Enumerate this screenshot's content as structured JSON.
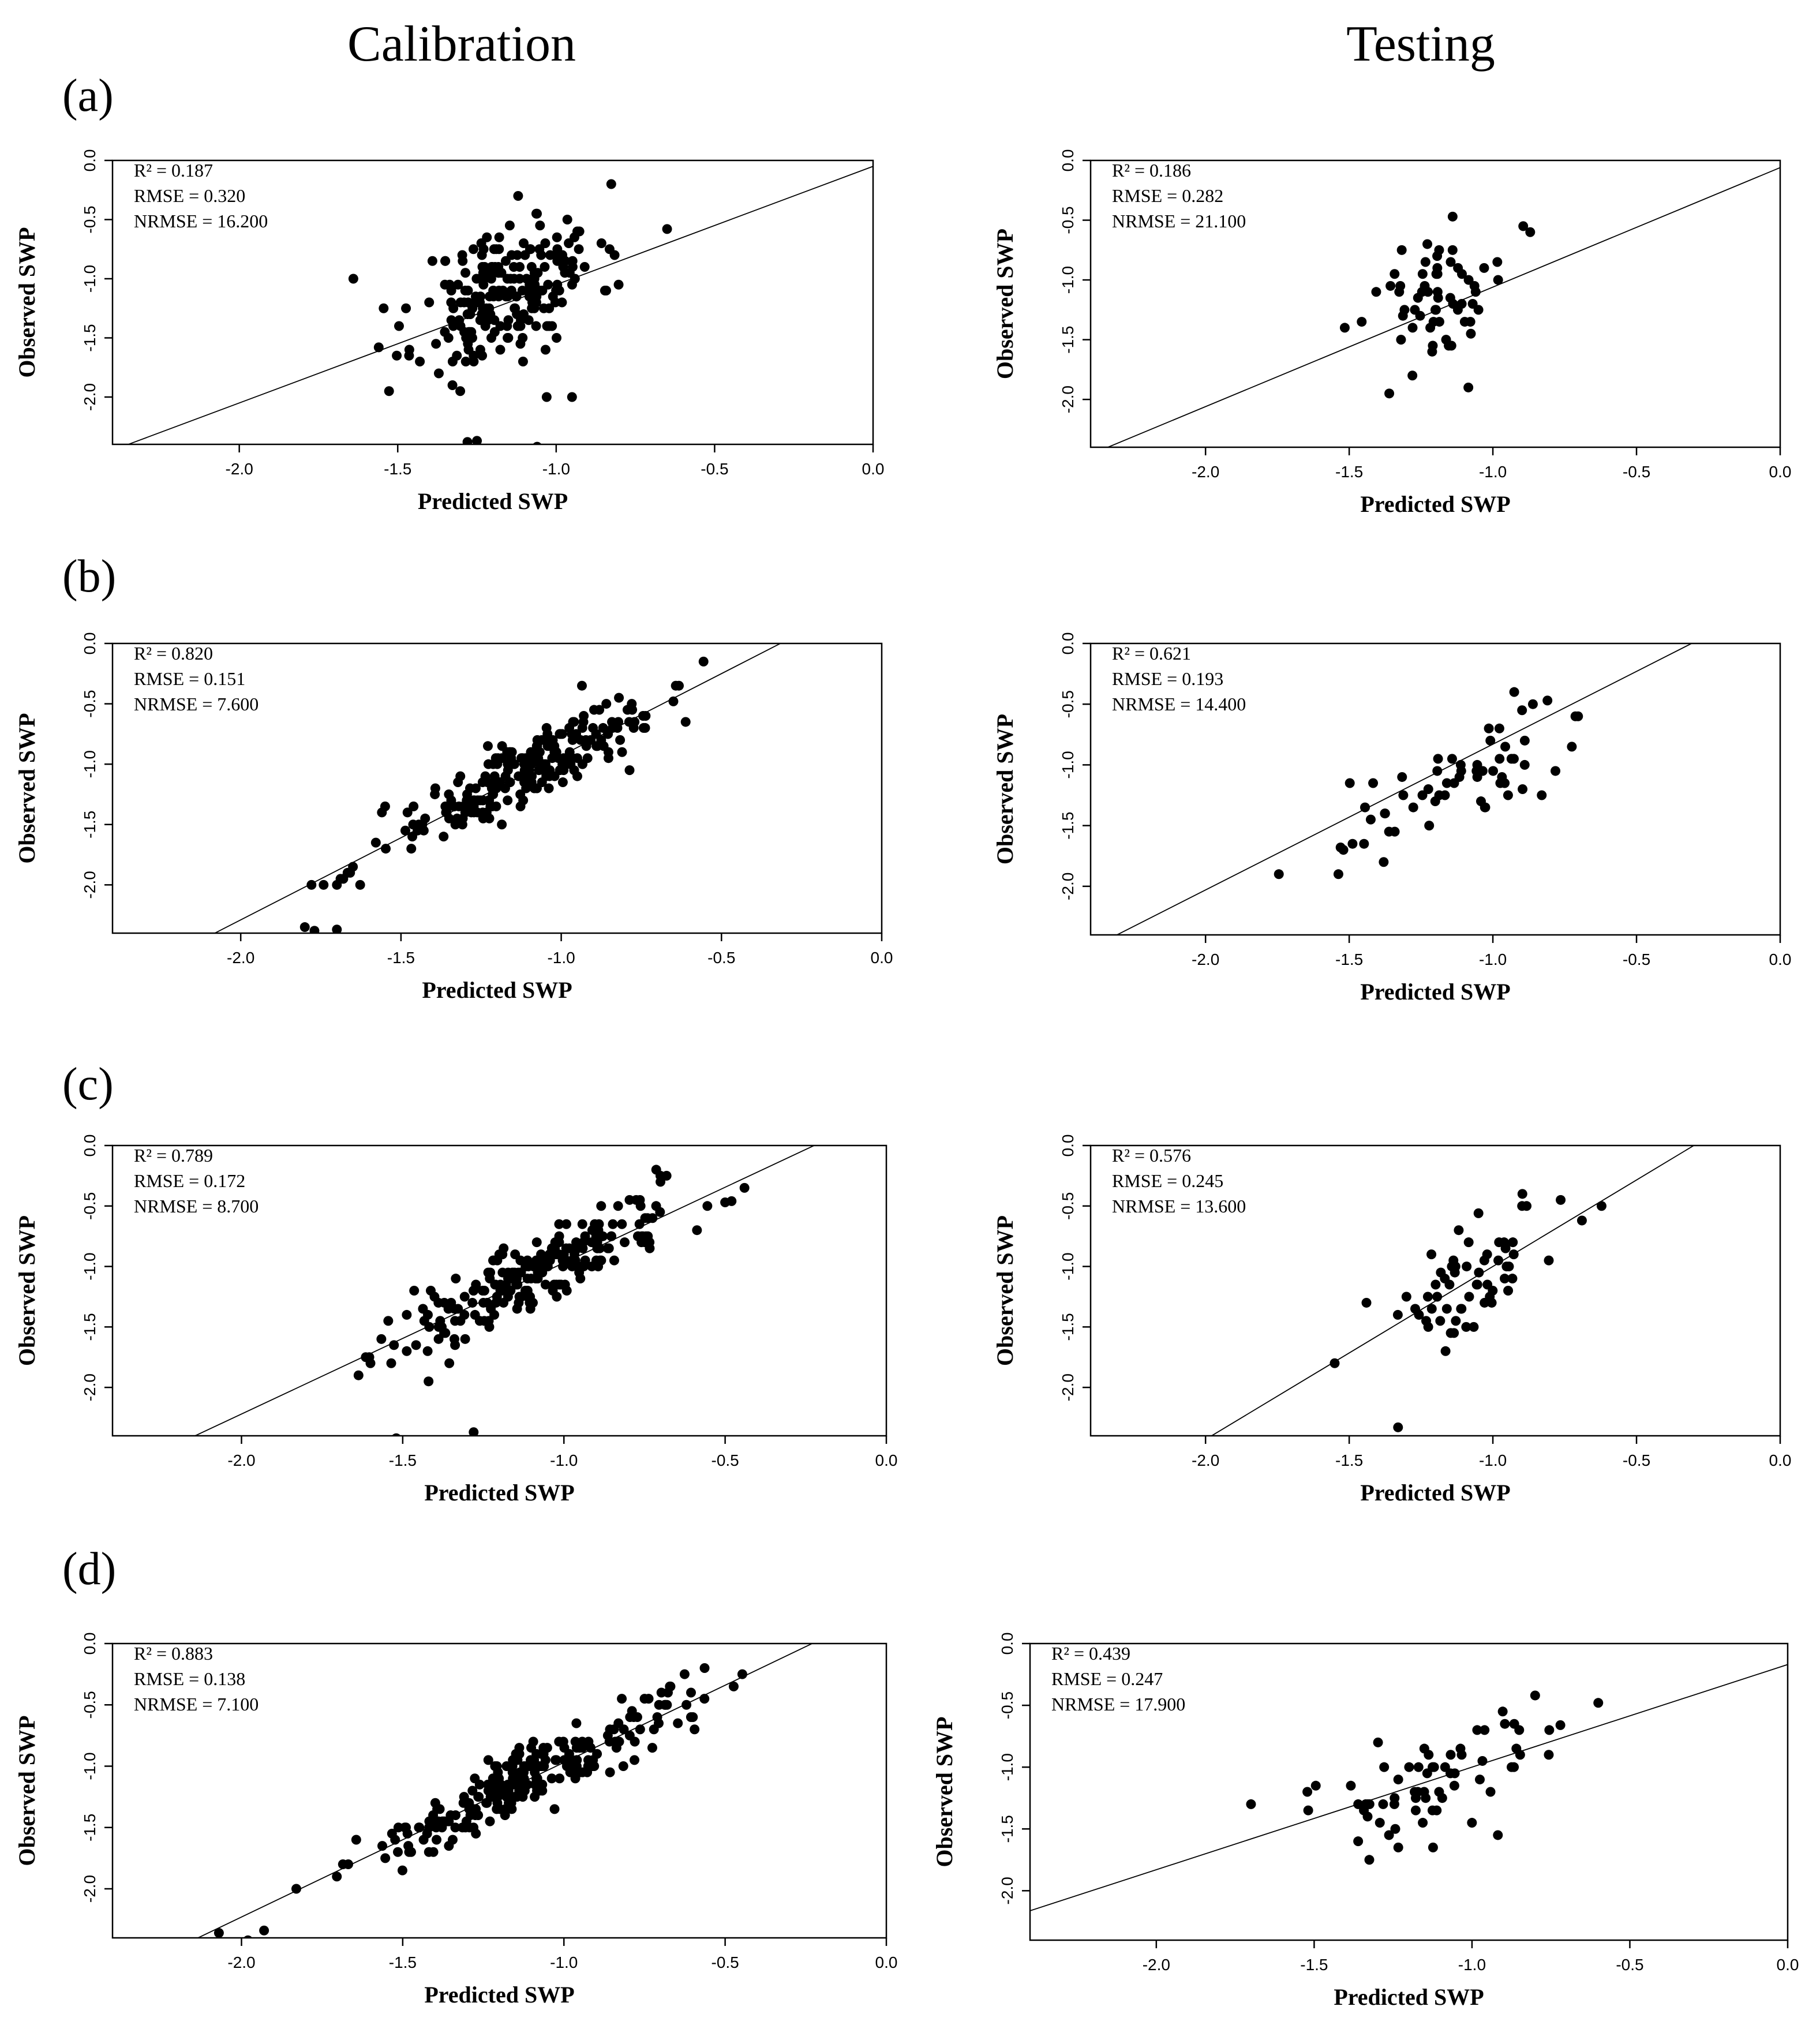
{
  "figure": {
    "col_titles": [
      "Calibration",
      "Testing"
    ],
    "panel_labels": [
      "(a)",
      "(b)",
      "(c)",
      "(d)"
    ]
  },
  "chart_data": [
    {
      "id": "a-cal",
      "type": "scatter",
      "panel": "(a)",
      "column": "Calibration",
      "xlabel": "Predicted SWP",
      "ylabel": "Observed SWP",
      "xlim": [
        -2.4,
        0.0
      ],
      "ylim": [
        -2.4,
        0.0
      ],
      "xticks": [
        "-2.0",
        "-1.5",
        "-1.0",
        "-0.5",
        "0.0"
      ],
      "yticks": [
        "0.0",
        "-0.5",
        "-1.0",
        "-1.5",
        "-2.0"
      ],
      "stats": [
        "R² = 0.187",
        "RMSE = 0.320",
        "NRMSE = 16.200"
      ],
      "fit": {
        "slope": 1.0,
        "intercept": -0.05
      },
      "seed": 11,
      "n": 220,
      "center": [
        -1.15,
        -1.1
      ],
      "sd": [
        0.14,
        0.32
      ],
      "r": 0.43,
      "extra": [
        [
          -1.64,
          -1.0
        ],
        [
          -1.56,
          -1.58
        ],
        [
          -0.65,
          -0.58
        ],
        [
          -1.28,
          -2.38
        ],
        [
          -1.25,
          -2.37
        ],
        [
          -1.06,
          -2.42
        ],
        [
          -0.95,
          -2.0
        ],
        [
          -1.03,
          -2.0
        ]
      ]
    },
    {
      "id": "a-test",
      "type": "scatter",
      "panel": "(a)",
      "column": "Testing",
      "xlabel": "Predicted SWP",
      "ylabel": "Observed SWP",
      "xlim": [
        -2.4,
        0.0
      ],
      "ylim": [
        -2.4,
        0.0
      ],
      "xticks": [
        "-2.0",
        "-1.5",
        "-1.0",
        "-0.5",
        "0.0"
      ],
      "yticks": [
        "0.0",
        "-0.5",
        "-1.0",
        "-1.5",
        "-2.0"
      ],
      "stats": [
        "R² = 0.186",
        "RMSE = 0.282",
        "NRMSE = 21.100"
      ],
      "fit": {
        "slope": 1.0,
        "intercept": -0.06
      },
      "seed": 12,
      "n": 60,
      "center": [
        -1.17,
        -1.15
      ],
      "sd": [
        0.13,
        0.3
      ],
      "r": 0.43,
      "extra": [
        [
          -1.14,
          -0.47
        ],
        [
          -0.87,
          -0.6
        ],
        [
          -1.28,
          -1.8
        ]
      ]
    },
    {
      "id": "b-cal",
      "type": "scatter",
      "panel": "(b)",
      "column": "Calibration",
      "xlabel": "Predicted SWP",
      "ylabel": "Observed SWP",
      "xlim": [
        -2.4,
        0.0
      ],
      "ylim": [
        -2.4,
        0.0
      ],
      "xticks": [
        "-2.0",
        "-1.5",
        "-1.0",
        "-0.5",
        "0.0"
      ],
      "yticks": [
        "0.0",
        "-0.5",
        "-1.0",
        "-1.5",
        "-2.0"
      ],
      "stats": [
        "R² = 0.820",
        "RMSE = 0.151",
        "NRMSE = 7.600"
      ],
      "fit": {
        "slope": 1.36,
        "intercept": 0.43
      },
      "seed": 21,
      "n": 240,
      "center": [
        -1.1,
        -1.05
      ],
      "sd": [
        0.22,
        0.32
      ],
      "r": 0.9,
      "extra": [
        [
          -1.8,
          -2.35
        ],
        [
          -1.77,
          -2.38
        ],
        [
          -1.7,
          -2.37
        ],
        [
          -1.7,
          -2.0
        ],
        [
          -1.68,
          -1.95
        ],
        [
          -0.65,
          -0.48
        ]
      ]
    },
    {
      "id": "b-test",
      "type": "scatter",
      "panel": "(b)",
      "column": "Testing",
      "xlabel": "Predicted SWP",
      "ylabel": "Observed SWP",
      "xlim": [
        -2.4,
        0.0
      ],
      "ylim": [
        -2.4,
        0.0
      ],
      "xticks": [
        "-2.0",
        "-1.5",
        "-1.0",
        "-0.5",
        "0.0"
      ],
      "yticks": [
        "0.0",
        "-0.5",
        "-1.0",
        "-1.5",
        "-2.0"
      ],
      "stats": [
        "R² = 0.621",
        "RMSE = 0.193",
        "NRMSE = 14.400"
      ],
      "fit": {
        "slope": 1.2,
        "intercept": 0.37
      },
      "seed": 22,
      "n": 60,
      "center": [
        -1.15,
        -1.15
      ],
      "sd": [
        0.2,
        0.3
      ],
      "r": 0.79,
      "extra": [
        [
          -0.81,
          -0.47
        ],
        [
          -1.53,
          -1.68
        ],
        [
          -1.38,
          -1.8
        ]
      ]
    },
    {
      "id": "c-cal",
      "type": "scatter",
      "panel": "(c)",
      "column": "Calibration",
      "xlabel": "Predicted SWP",
      "ylabel": "Observed SWP",
      "xlim": [
        -2.4,
        0.0
      ],
      "ylim": [
        -2.4,
        0.0
      ],
      "xticks": [
        "-2.0",
        "-1.5",
        "-1.0",
        "-0.5",
        "0.0"
      ],
      "yticks": [
        "0.0",
        "-0.5",
        "-1.0",
        "-1.5",
        "-2.0"
      ],
      "stats": [
        "R² = 0.789",
        "RMSE = 0.172",
        "NRMSE = 8.700"
      ],
      "fit": {
        "slope": 1.25,
        "intercept": 0.28
      },
      "seed": 31,
      "n": 230,
      "center": [
        -1.1,
        -1.08
      ],
      "sd": [
        0.24,
        0.35
      ],
      "r": 0.89,
      "extra": [
        [
          -1.52,
          -2.42
        ],
        [
          -1.28,
          -2.37
        ],
        [
          -0.5,
          -0.47
        ],
        [
          -0.48,
          -0.46
        ],
        [
          -1.6,
          -1.8
        ]
      ]
    },
    {
      "id": "c-test",
      "type": "scatter",
      "panel": "(c)",
      "column": "Testing",
      "xlabel": "Predicted SWP",
      "ylabel": "Observed SWP",
      "xlim": [
        -2.4,
        0.0
      ],
      "ylim": [
        -2.4,
        0.0
      ],
      "xticks": [
        "-2.0",
        "-1.5",
        "-1.0",
        "-0.5",
        "0.0"
      ],
      "yticks": [
        "0.0",
        "-0.5",
        "-1.0",
        "-1.5",
        "-2.0"
      ],
      "stats": [
        "R² = 0.576",
        "RMSE = 0.245",
        "NRMSE = 13.600"
      ],
      "fit": {
        "slope": 1.43,
        "intercept": 0.43
      },
      "seed": 32,
      "n": 60,
      "center": [
        -1.08,
        -1.1
      ],
      "sd": [
        0.17,
        0.33
      ],
      "r": 0.76,
      "extra": [
        [
          -1.33,
          -2.33
        ],
        [
          -1.05,
          -0.56
        ],
        [
          -1.44,
          -1.3
        ],
        [
          -0.69,
          -0.62
        ]
      ]
    },
    {
      "id": "d-cal",
      "type": "scatter",
      "panel": "(d)",
      "column": "Calibration",
      "xlabel": "Predicted SWP",
      "ylabel": "Observed SWP",
      "xlim": [
        -2.4,
        0.0
      ],
      "ylim": [
        -2.4,
        0.0
      ],
      "xticks": [
        "-2.0",
        "-1.5",
        "-1.0",
        "-0.5",
        "0.0"
      ],
      "yticks": [
        "0.0",
        "-0.5",
        "-1.0",
        "-1.5",
        "-2.0"
      ],
      "stats": [
        "R² = 0.883",
        "RMSE = 0.138",
        "NRMSE = 7.100"
      ],
      "fit": {
        "slope": 1.26,
        "intercept": 0.29
      },
      "seed": 41,
      "n": 250,
      "center": [
        -1.1,
        -1.08
      ],
      "sd": [
        0.25,
        0.35
      ],
      "r": 0.94,
      "extra": [
        [
          -2.07,
          -2.36
        ],
        [
          -1.93,
          -2.34
        ],
        [
          -1.98,
          -2.42
        ],
        [
          -1.83,
          -2.0
        ],
        [
          -0.6,
          -0.6
        ],
        [
          -0.62,
          -0.5
        ]
      ]
    },
    {
      "id": "d-test",
      "type": "scatter",
      "panel": "(d)",
      "column": "Testing",
      "xlabel": "Predicted SWP",
      "ylabel": "Observed SWP",
      "xlim": [
        -2.4,
        0.0
      ],
      "ylim": [
        -2.4,
        0.0
      ],
      "xticks": [
        "-2.0",
        "-1.5",
        "-1.0",
        "-0.5",
        "0.0"
      ],
      "yticks": [
        "0.0",
        "-0.5",
        "-1.0",
        "-1.5",
        "-2.0"
      ],
      "stats": [
        "R² = 0.439",
        "RMSE = 0.247",
        "NRMSE = 17.900"
      ],
      "fit": {
        "slope": 0.83,
        "intercept": -0.17
      },
      "seed": 42,
      "n": 65,
      "center": [
        -1.17,
        -1.15
      ],
      "sd": [
        0.22,
        0.3
      ],
      "r": 0.66,
      "extra": [
        [
          -1.7,
          -1.3
        ],
        [
          -0.8,
          -0.42
        ],
        [
          -0.6,
          -0.48
        ],
        [
          -0.72,
          -0.66
        ]
      ]
    }
  ]
}
